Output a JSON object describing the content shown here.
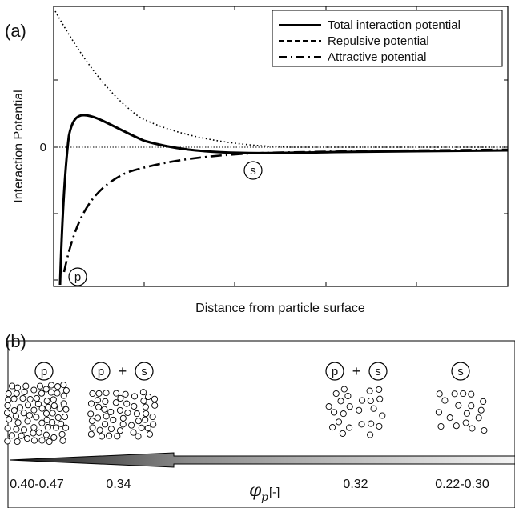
{
  "panel_a": {
    "label": "(a)",
    "ylabel": "Interaction Potential",
    "xlabel": "Distance from particle surface",
    "zero_tick": "0",
    "legend": {
      "total": "Total interaction potential",
      "repulsive": "Repulsive potential",
      "attractive": "Attractive potential"
    },
    "markers": {
      "primary": "p",
      "secondary": "s"
    }
  },
  "panel_b": {
    "label": "(b)",
    "groups": [
      {
        "labels": [
          "p"
        ],
        "range": "0.40-0.47"
      },
      {
        "labels": [
          "p",
          "s"
        ],
        "range": "0.34"
      },
      {
        "labels": [
          "p",
          "s"
        ],
        "range": "0.32"
      },
      {
        "labels": [
          "s"
        ],
        "range": "0.22-0.30"
      }
    ],
    "plus": "+",
    "axis_symbol": "φ",
    "axis_subscript": "p",
    "axis_unit": "[-]"
  },
  "chart_data": {
    "type": "line",
    "title": "",
    "xlabel": "Distance from particle surface",
    "ylabel": "Interaction Potential",
    "ytick_labels": [
      "0"
    ],
    "legend_position": "top-right",
    "grid": false,
    "series": [
      {
        "name": "Total interaction potential",
        "style": "solid"
      },
      {
        "name": "Repulsive potential",
        "style": "dashed"
      },
      {
        "name": "Attractive potential",
        "style": "dash-dot"
      }
    ]
  }
}
